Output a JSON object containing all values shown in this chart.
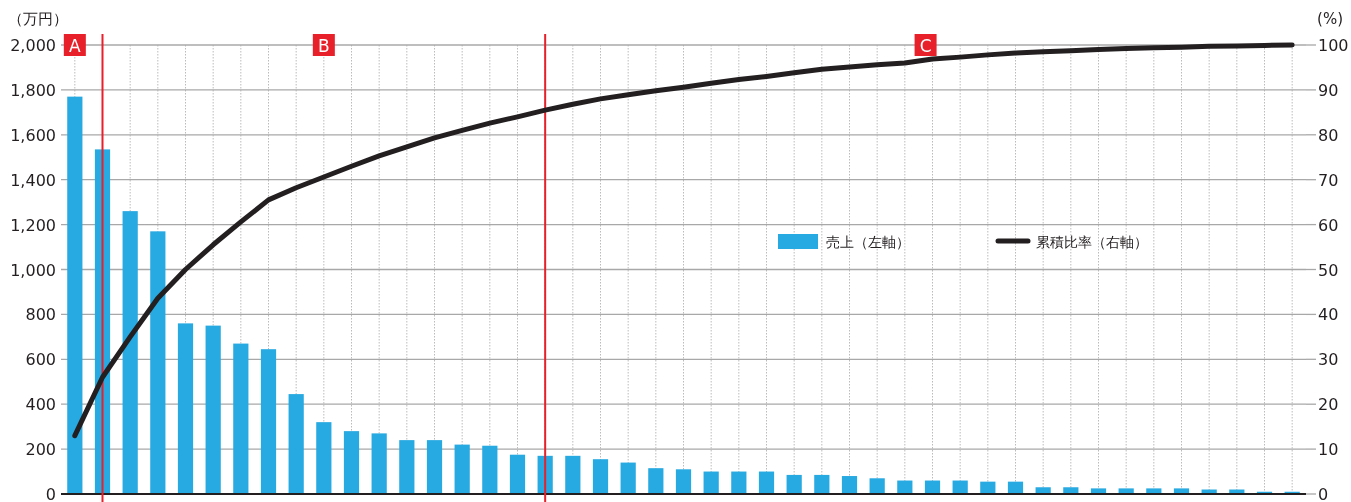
{
  "chart_data": {
    "type": "bar",
    "categories": [
      null,
      null,
      null,
      null,
      null,
      null,
      null,
      null,
      null,
      null,
      null,
      null,
      null,
      null,
      null,
      null,
      null,
      null,
      null,
      null,
      null,
      null,
      null,
      null,
      null,
      null,
      null,
      null,
      null,
      null,
      null,
      null,
      null,
      null,
      null,
      null,
      null,
      null,
      null,
      null,
      null,
      null,
      null,
      null,
      null
    ],
    "ylabel": "（万円）",
    "y2label": "(%)",
    "ylim": [
      0,
      2000
    ],
    "yticks": [
      0,
      {
        "value": 200,
        "label": "200"
      },
      {
        "value": 400,
        "label": "400"
      },
      {
        "value": 600,
        "label": "600"
      },
      {
        "value": 800,
        "label": "800"
      },
      {
        "value": 1000,
        "label": "1,000"
      },
      {
        "value": 1200,
        "label": "1,200"
      },
      {
        "value": 1400,
        "label": "1,400"
      },
      {
        "value": 1600,
        "label": "1,600"
      },
      {
        "value": 1800,
        "label": "1,800"
      },
      {
        "value": 2000,
        "label": "2,000"
      }
    ],
    "y2lim": [
      0,
      100
    ],
    "y2ticks": [
      0,
      10,
      20,
      30,
      40,
      50,
      60,
      70,
      80,
      90,
      100
    ],
    "grid": true,
    "legend": "right",
    "series": [
      {
        "name": "売上（左軸）",
        "color": "#27a9e1",
        "values": [
          1770,
          1535,
          1260,
          1170,
          760,
          750,
          670,
          645,
          445,
          320,
          280,
          270,
          240,
          240,
          220,
          215,
          175,
          170,
          170,
          155,
          140,
          115,
          110,
          100,
          100,
          100,
          85,
          85,
          80,
          70,
          60,
          60,
          60,
          55,
          55,
          30,
          30,
          25,
          25,
          25,
          25,
          20,
          20,
          10,
          10
        ]
      },
      {
        "name": "累積比率（右軸）",
        "type": "line",
        "axis": "y2",
        "color": "#231f20",
        "values": [
          13,
          26,
          35,
          43.6,
          50,
          55.5,
          60.6,
          65.5,
          68.2,
          70.6,
          73,
          75.3,
          77.3,
          79.3,
          81,
          82.6,
          84,
          85.5,
          86.8,
          88,
          88.9,
          89.8,
          90.6,
          91.5,
          92.3,
          93,
          93.8,
          94.6,
          95.1,
          95.6,
          96,
          96.9,
          97.3,
          97.8,
          98.2,
          98.5,
          98.7,
          99,
          99.2,
          99.4,
          99.5,
          99.7,
          99.8,
          99.9,
          100
        ]
      }
    ],
    "annotations": [
      "A",
      "B",
      "C"
    ]
  }
}
